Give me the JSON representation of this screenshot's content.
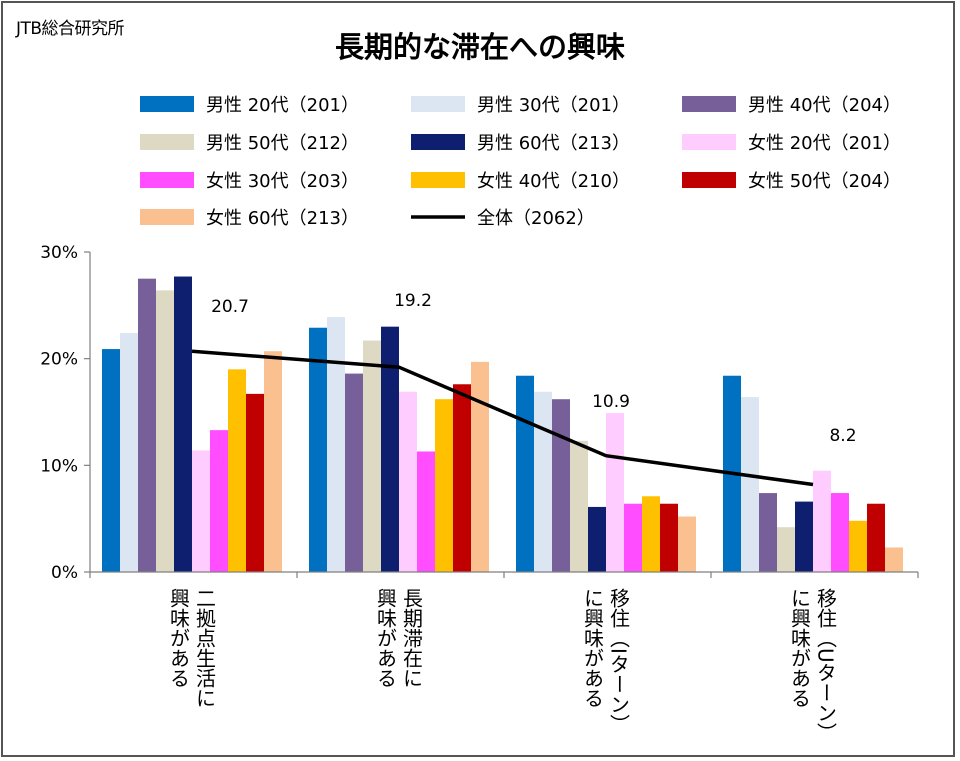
{
  "source": "JTB総合研究所",
  "chart_data": {
    "type": "bar",
    "title": "長期的な滞在への興味",
    "categories": [
      [
        "二拠点生活に",
        "興味がある"
      ],
      [
        "長期滞在に",
        "興味がある"
      ],
      [
        "移住（Iターン）",
        "に興味がある"
      ],
      [
        "移住（Uターン）",
        "に興味がある"
      ]
    ],
    "ylim": [
      0,
      30
    ],
    "yticks": [
      "0%",
      "10%",
      "20%",
      "30%"
    ],
    "series": [
      {
        "name": "男性 20代（201）",
        "color": "#0070C0",
        "values": [
          20.9,
          22.9,
          18.4,
          18.4
        ]
      },
      {
        "name": "男性 30代（201）",
        "color": "#DCE6F2",
        "values": [
          22.4,
          23.9,
          16.9,
          16.4
        ]
      },
      {
        "name": "男性 40代（204）",
        "color": "#77609A",
        "values": [
          27.5,
          18.6,
          16.2,
          7.4
        ]
      },
      {
        "name": "男性 50代（212）",
        "color": "#DDD9C3",
        "values": [
          26.4,
          21.7,
          12.3,
          4.2
        ]
      },
      {
        "name": "男性 60代（213）",
        "color": "#0D1F6E",
        "values": [
          27.7,
          23.0,
          6.1,
          6.6
        ]
      },
      {
        "name": "女性 20代（201）",
        "color": "#FFCCFF",
        "values": [
          11.4,
          16.9,
          14.9,
          9.5
        ]
      },
      {
        "name": "女性 30代（203）",
        "color": "#FF4DFF",
        "values": [
          13.3,
          11.3,
          6.4,
          7.4
        ]
      },
      {
        "name": "女性 40代（210）",
        "color": "#FFC000",
        "values": [
          19.0,
          16.2,
          7.1,
          4.8
        ]
      },
      {
        "name": "女性 50代（204）",
        "color": "#C00000",
        "values": [
          16.7,
          17.6,
          6.4,
          6.4
        ]
      },
      {
        "name": "女性 60代（213）",
        "color": "#FAC090",
        "values": [
          20.7,
          19.7,
          5.2,
          2.3
        ]
      }
    ],
    "line": {
      "name": "全体（2062）",
      "color": "#000000",
      "values": [
        20.7,
        19.2,
        10.9,
        8.2
      ]
    },
    "data_labels": [
      "20.7",
      "19.2",
      "10.9",
      "8.2"
    ],
    "legend_position": "top"
  }
}
